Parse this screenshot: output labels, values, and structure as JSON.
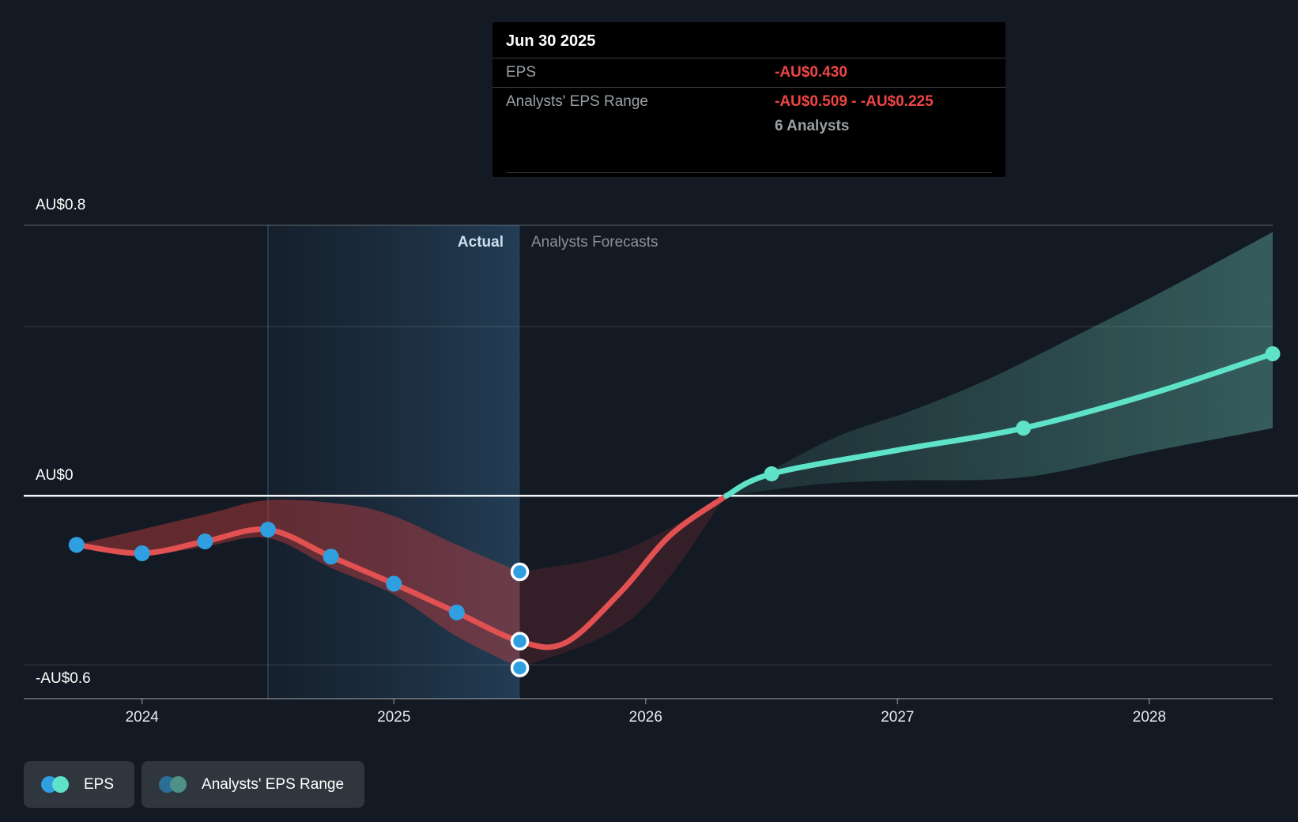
{
  "header": {
    "actual_label": "Actual",
    "forecast_label": "Analysts Forecasts"
  },
  "tooltip": {
    "title": "Jun 30 2025",
    "rows": [
      {
        "label": "EPS",
        "value": "-AU$0.430"
      },
      {
        "label": "Analysts' EPS Range",
        "value": "-AU$0.509 - -AU$0.225",
        "note": "6 Analysts"
      }
    ]
  },
  "legend": [
    {
      "label": "EPS",
      "colors": [
        "#2f9fe0",
        "#5fe3c8"
      ]
    },
    {
      "label": "Analysts' EPS Range",
      "colors": [
        "#2b6e96",
        "#4f9088"
      ]
    }
  ],
  "colors": {
    "background": "#131a23",
    "actual_line": "#e25151",
    "actual_dot": "#2f9fe0",
    "forecast_line": "#5fe3c8",
    "forecast_dot": "#5fe3c8",
    "negative_value": "#ee4545",
    "zero_line": "#f2f5f7",
    "gridline_major": "rgba(255,255,255,0.22)",
    "gridline_minor": "rgba(255,255,255,0.10)",
    "axis_line": "rgba(255,255,255,0.40)",
    "divider_line": "#7fc4e8",
    "highlight_edge": "rgba(90,150,200,0.35)",
    "actual_band_fill": "rgba(208,62,62,0.42)",
    "transition_band_fill": "rgba(185,55,58,0.20)",
    "forecast_band_start": "rgba(94,175,165,0.14)",
    "forecast_band_end": "rgba(105,192,178,0.40)",
    "highlight_start": "rgba(56,108,158,0.07)",
    "highlight_end": "rgba(72,142,198,0.30)"
  },
  "chart_data": {
    "type": "line",
    "title": "EPS actual and analysts forecast (AU$)",
    "currency": "AU$",
    "xlim": [
      2023.53,
      2028.49
    ],
    "ylim": [
      -0.6,
      0.8
    ],
    "y_axis_labels": [
      {
        "label": "AU$0.8",
        "value": 0.8
      },
      {
        "label": "AU$0",
        "value": 0
      },
      {
        "label": "-AU$0.6",
        "value": -0.6
      }
    ],
    "y_gridlines_minor": [
      0.5,
      -0.5
    ],
    "x_ticks": [
      {
        "label": "2024",
        "value": 2024
      },
      {
        "label": "2025",
        "value": 2025
      },
      {
        "label": "2026",
        "value": 2026
      },
      {
        "label": "2027",
        "value": 2027
      },
      {
        "label": "2028",
        "value": 2028
      }
    ],
    "highlight_period": [
      2024.5,
      2025.5
    ],
    "divider_x": 2025.5,
    "zero_cross_x": 2026.32,
    "series": {
      "actual_eps": {
        "name": "EPS",
        "points": [
          [
            2023.74,
            -0.145
          ],
          [
            2024.0,
            -0.17
          ],
          [
            2024.25,
            -0.135
          ],
          [
            2024.5,
            -0.1
          ],
          [
            2024.75,
            -0.18
          ],
          [
            2025.0,
            -0.26
          ],
          [
            2025.25,
            -0.345
          ],
          [
            2025.5,
            -0.43
          ]
        ]
      },
      "forecast_red_segment": {
        "points": [
          [
            2025.5,
            -0.43
          ],
          [
            2025.68,
            -0.435
          ],
          [
            2025.9,
            -0.285
          ],
          [
            2026.1,
            -0.115
          ],
          [
            2026.32,
            0
          ]
        ]
      },
      "forecast_eps": {
        "name": "EPS forecast",
        "points": [
          [
            2026.32,
            0
          ],
          [
            2026.5,
            0.065
          ],
          [
            2027.0,
            0.135
          ],
          [
            2027.5,
            0.2
          ],
          [
            2028.0,
            0.3
          ],
          [
            2028.49,
            0.42
          ]
        ],
        "dot_years": [
          2026.5,
          2027.5,
          2028.49
        ]
      },
      "actual_range_band": {
        "top": [
          [
            2023.74,
            -0.145
          ],
          [
            2024.25,
            -0.055
          ],
          [
            2024.5,
            -0.013
          ],
          [
            2024.8,
            -0.025
          ],
          [
            2025.0,
            -0.06
          ],
          [
            2025.25,
            -0.145
          ],
          [
            2025.5,
            -0.225
          ]
        ],
        "bottom": [
          [
            2023.74,
            -0.145
          ],
          [
            2024.0,
            -0.175
          ],
          [
            2024.25,
            -0.15
          ],
          [
            2024.5,
            -0.125
          ],
          [
            2024.75,
            -0.213
          ],
          [
            2025.0,
            -0.292
          ],
          [
            2025.25,
            -0.416
          ],
          [
            2025.5,
            -0.509
          ]
        ]
      },
      "transition_range_band": {
        "top": [
          [
            2025.5,
            -0.225
          ],
          [
            2025.9,
            -0.165
          ],
          [
            2026.32,
            0
          ]
        ],
        "bottom": [
          [
            2025.5,
            -0.509
          ],
          [
            2025.95,
            -0.36
          ],
          [
            2026.32,
            0
          ]
        ]
      },
      "forecast_range_band": {
        "top": [
          [
            2026.32,
            0
          ],
          [
            2026.73,
            0.165
          ],
          [
            2027.05,
            0.25
          ],
          [
            2027.36,
            0.345
          ],
          [
            2027.74,
            0.485
          ],
          [
            2028.08,
            0.615
          ],
          [
            2028.49,
            0.78
          ]
        ],
        "bottom": [
          [
            2026.32,
            0
          ],
          [
            2026.7,
            0.035
          ],
          [
            2027.0,
            0.045
          ],
          [
            2027.5,
            0.055
          ],
          [
            2028.0,
            0.13
          ],
          [
            2028.49,
            0.2
          ]
        ]
      }
    },
    "selected_point": {
      "date": "Jun 30 2025",
      "x": 2025.5,
      "eps": -0.43,
      "range_low": -0.509,
      "range_high": -0.225,
      "analysts": 6
    }
  }
}
